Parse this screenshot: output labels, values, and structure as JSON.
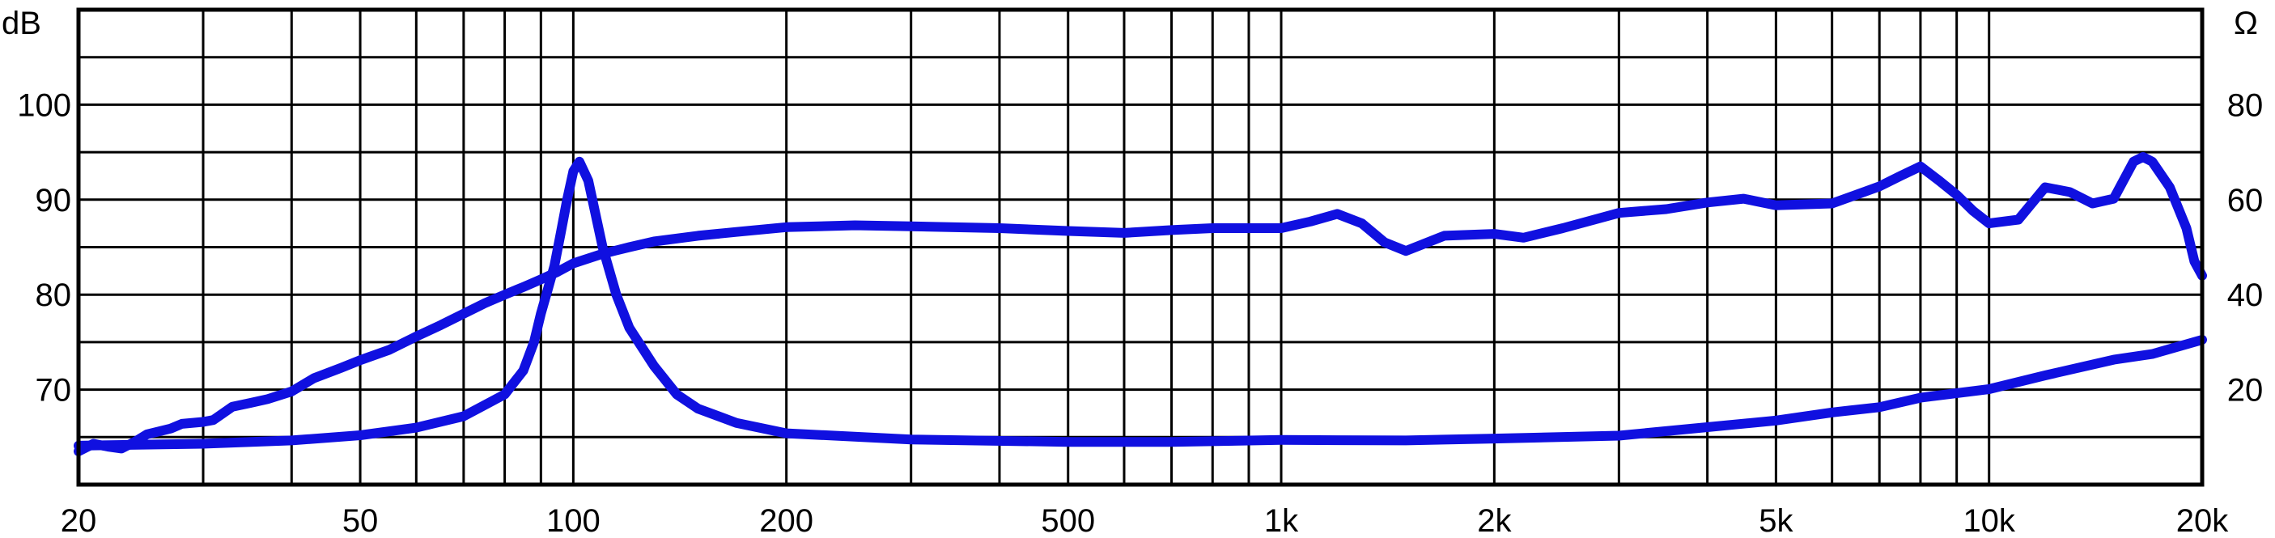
{
  "chart_data": {
    "type": "line",
    "x_scale": "log",
    "xlim": [
      20,
      20000
    ],
    "ylim_left": [
      60,
      110
    ],
    "ylim_right": [
      0,
      100
    ],
    "ylabel_left": "dB",
    "ylabel_right": "Ω",
    "grid": true,
    "x_major_ticks": [
      {
        "value": 20,
        "label": "20"
      },
      {
        "value": 50,
        "label": "50"
      },
      {
        "value": 100,
        "label": "100"
      },
      {
        "value": 200,
        "label": "200"
      },
      {
        "value": 500,
        "label": "500"
      },
      {
        "value": 1000,
        "label": "1k"
      },
      {
        "value": 2000,
        "label": "2k"
      },
      {
        "value": 5000,
        "label": "5k"
      },
      {
        "value": 10000,
        "label": "10k"
      },
      {
        "value": 20000,
        "label": "20k"
      }
    ],
    "x_gridlines": [
      20,
      30,
      40,
      50,
      60,
      70,
      80,
      90,
      100,
      200,
      300,
      400,
      500,
      600,
      700,
      800,
      900,
      1000,
      2000,
      3000,
      4000,
      5000,
      6000,
      7000,
      8000,
      9000,
      10000,
      20000
    ],
    "y_gridlines_left": [
      60,
      65,
      70,
      75,
      80,
      85,
      90,
      95,
      100,
      105,
      110
    ],
    "y_ticks_left": [
      {
        "value": 70,
        "label": "70"
      },
      {
        "value": 80,
        "label": "80"
      },
      {
        "value": 90,
        "label": "90"
      },
      {
        "value": 100,
        "label": "100"
      }
    ],
    "y_ticks_right": [
      {
        "value": 20,
        "label": "20"
      },
      {
        "value": 40,
        "label": "40"
      },
      {
        "value": 60,
        "label": "60"
      },
      {
        "value": 80,
        "label": "80"
      }
    ],
    "series": [
      {
        "axis": "left",
        "color": "#1010e0",
        "points": [
          [
            20,
            63.5
          ],
          [
            21,
            64.3
          ],
          [
            22,
            64.0
          ],
          [
            23,
            63.8
          ],
          [
            24,
            64.5
          ],
          [
            25,
            65.3
          ],
          [
            27,
            65.9
          ],
          [
            28,
            66.4
          ],
          [
            30,
            66.6
          ],
          [
            31,
            66.8
          ],
          [
            33,
            68.2
          ],
          [
            35,
            68.6
          ],
          [
            37,
            69.0
          ],
          [
            40,
            69.8
          ],
          [
            43,
            71.2
          ],
          [
            47,
            72.3
          ],
          [
            50,
            73.1
          ],
          [
            55,
            74.2
          ],
          [
            60,
            75.6
          ],
          [
            65,
            76.8
          ],
          [
            70,
            78.0
          ],
          [
            75,
            79.1
          ],
          [
            80,
            80.0
          ],
          [
            85,
            80.8
          ],
          [
            90,
            81.6
          ],
          [
            95,
            82.4
          ],
          [
            100,
            83.3
          ],
          [
            110,
            84.3
          ],
          [
            120,
            85.0
          ],
          [
            130,
            85.6
          ],
          [
            150,
            86.2
          ],
          [
            170,
            86.6
          ],
          [
            200,
            87.1
          ],
          [
            250,
            87.3
          ],
          [
            300,
            87.2
          ],
          [
            400,
            87.0
          ],
          [
            500,
            86.7
          ],
          [
            600,
            86.5
          ],
          [
            700,
            86.8
          ],
          [
            800,
            87.0
          ],
          [
            900,
            87.0
          ],
          [
            1000,
            87.0
          ],
          [
            1100,
            87.7
          ],
          [
            1200,
            88.5
          ],
          [
            1300,
            87.5
          ],
          [
            1400,
            85.5
          ],
          [
            1500,
            84.6
          ],
          [
            1700,
            86.2
          ],
          [
            2000,
            86.4
          ],
          [
            2200,
            86.0
          ],
          [
            2500,
            87.0
          ],
          [
            3000,
            88.6
          ],
          [
            3500,
            89.0
          ],
          [
            4000,
            89.7
          ],
          [
            4500,
            90.1
          ],
          [
            5000,
            89.4
          ],
          [
            6000,
            89.6
          ],
          [
            7000,
            91.4
          ],
          [
            7500,
            92.5
          ],
          [
            8000,
            93.5
          ],
          [
            8500,
            92.0
          ],
          [
            9000,
            90.5
          ],
          [
            9500,
            88.8
          ],
          [
            10000,
            87.5
          ],
          [
            11000,
            87.9
          ],
          [
            12000,
            91.3
          ],
          [
            13000,
            90.8
          ],
          [
            14000,
            89.6
          ],
          [
            15000,
            90.1
          ],
          [
            16000,
            94.0
          ],
          [
            16500,
            94.5
          ],
          [
            17000,
            94.0
          ],
          [
            18000,
            91.3
          ],
          [
            19000,
            87.0
          ],
          [
            19500,
            83.5
          ],
          [
            20000,
            82.0
          ]
        ]
      },
      {
        "axis": "right",
        "color": "#1010e0",
        "points": [
          [
            20,
            8.2
          ],
          [
            30,
            8.6
          ],
          [
            40,
            9.3
          ],
          [
            50,
            10.4
          ],
          [
            60,
            12.0
          ],
          [
            70,
            14.4
          ],
          [
            80,
            19.0
          ],
          [
            85,
            24.0
          ],
          [
            88,
            30.0
          ],
          [
            90,
            36.0
          ],
          [
            92,
            41.0
          ],
          [
            94,
            46.0
          ],
          [
            96,
            53.0
          ],
          [
            98,
            60.0
          ],
          [
            100,
            66.0
          ],
          [
            102,
            68.0
          ],
          [
            105,
            64.0
          ],
          [
            110,
            50.0
          ],
          [
            115,
            40.0
          ],
          [
            120,
            33.0
          ],
          [
            130,
            25.0
          ],
          [
            140,
            19.0
          ],
          [
            150,
            16.0
          ],
          [
            170,
            13.0
          ],
          [
            200,
            10.8
          ],
          [
            300,
            9.5
          ],
          [
            500,
            9.0
          ],
          [
            700,
            9.0
          ],
          [
            1000,
            9.4
          ],
          [
            1500,
            9.3
          ],
          [
            2000,
            9.7
          ],
          [
            3000,
            10.3
          ],
          [
            4000,
            12.1
          ],
          [
            5000,
            13.5
          ],
          [
            6000,
            15.2
          ],
          [
            7000,
            16.3
          ],
          [
            8000,
            18.3
          ],
          [
            10000,
            20.1
          ],
          [
            12000,
            23.0
          ],
          [
            15000,
            26.3
          ],
          [
            17000,
            27.5
          ],
          [
            20000,
            30.5
          ]
        ]
      }
    ]
  }
}
